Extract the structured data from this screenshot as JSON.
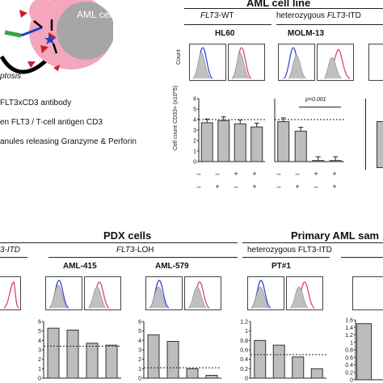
{
  "schematic": {
    "cell_label": "AML cell",
    "partial_label": "ptosis",
    "colors": {
      "cell": "#f4a6bd",
      "nucleus": "#a6a6a6",
      "receptor": "#cc1f2a",
      "antibody": "#1f3fbf",
      "link": "#3aa34a"
    }
  },
  "legend": {
    "line1": "FLT3xCD3 antibody",
    "line2": "en FLT3 / T-cell antigen CD3",
    "line3": "anules releasing Granzyme & Perforin"
  },
  "aml_lines": {
    "header": "AML cell line",
    "groups": [
      {
        "gene": "FLT3",
        "suffix": "-WT"
      },
      {
        "prefix": "heterozygous ",
        "gene": "FLT3",
        "suffix": "-ITD"
      }
    ],
    "samples": [
      "HL60",
      "MOLM-13"
    ],
    "hist_ylabel": "Count",
    "bar_ylabel": "Cell count CD33+ (x10^5)",
    "pvalue": "p=0.001",
    "signs": {
      "row1": [
        "–",
        "–",
        "+",
        "+",
        "–",
        "–",
        "+",
        "+"
      ],
      "row2": [
        "–",
        "+",
        "–",
        "+",
        "–",
        "+",
        "–",
        "+"
      ]
    }
  },
  "pdx": {
    "header": "PDX cells",
    "left_group_suffix": "3-ITD",
    "group": {
      "gene": "FLT3",
      "suffix": "-LOH"
    },
    "samples": [
      "AML-415",
      "AML-579"
    ]
  },
  "primary": {
    "header": "Primary AML sam",
    "group": "heterozygous FLT3-ITD",
    "samples": [
      "PT#1"
    ]
  },
  "chart_data": [
    {
      "type": "bar",
      "categories": [
        "1",
        "2",
        "3",
        "4"
      ],
      "values": [
        3.7,
        3.9,
        3.6,
        3.3
      ],
      "ylim": [
        0,
        6
      ],
      "yticks": [
        "0",
        "1",
        "2",
        "3",
        "4",
        "5",
        "6"
      ],
      "ylabel": "Cell count CD33+ (x10^5)",
      "reference_line": 4.0,
      "error_bars": true
    },
    {
      "type": "bar",
      "categories": [
        "1",
        "2",
        "3",
        "4"
      ],
      "values": [
        3.8,
        2.9,
        0.1,
        0.1
      ],
      "ylim": [
        0,
        6
      ],
      "reference_line": 4.0,
      "error_bars": true
    },
    {
      "type": "bar",
      "categories": [
        "1",
        "2",
        "3",
        "4"
      ],
      "values": [
        5.3,
        5.1,
        3.7,
        3.5
      ],
      "ylim": [
        0,
        6
      ],
      "yticks": [
        "0",
        "1",
        "2",
        "3",
        "4",
        "5",
        "6"
      ],
      "reference_line": 3.4
    },
    {
      "type": "bar",
      "categories": [
        "1",
        "2",
        "3",
        "4"
      ],
      "values": [
        4.6,
        3.9,
        1.0,
        0.3
      ],
      "ylim": [
        0,
        6
      ],
      "yticks": [
        "0",
        "1",
        "2",
        "3",
        "4",
        "5",
        "6"
      ],
      "reference_line": 1.1
    },
    {
      "type": "bar",
      "categories": [
        "1",
        "2",
        "3",
        "4"
      ],
      "values": [
        0.8,
        0.7,
        0.45,
        0.2
      ],
      "ylim": [
        0,
        1.2
      ],
      "yticks": [
        "0",
        "0.2",
        "0.4",
        "0.6",
        "0.8",
        "1",
        "1.2"
      ],
      "reference_line": 0.5
    },
    {
      "type": "bar",
      "categories": [
        "1"
      ],
      "values": [
        1.5
      ],
      "ylim": [
        0,
        1.6
      ],
      "yticks": [
        "0",
        "0.2",
        "0.4",
        "0.6",
        "0.8",
        "1",
        "1.2",
        "1.4",
        "1.6"
      ]
    }
  ]
}
